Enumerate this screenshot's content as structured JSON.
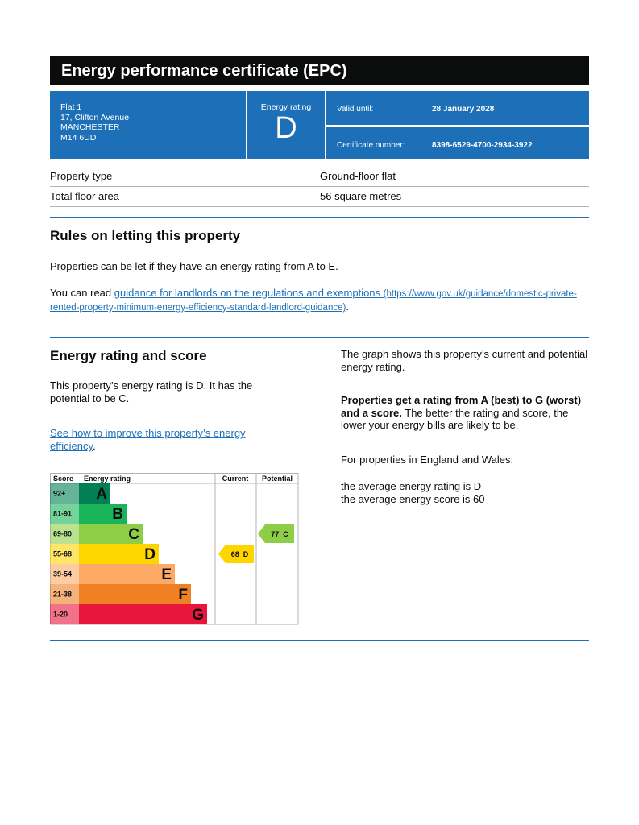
{
  "header": {
    "title": "Energy performance certificate (EPC)"
  },
  "summary": {
    "address": [
      "Flat 1",
      "17, Clifton Avenue",
      "MANCHESTER",
      "M14 6UD"
    ],
    "rating_label": "Energy rating",
    "rating": "D",
    "valid_until_label": "Valid until:",
    "valid_until": "28 January 2028",
    "certificate_label": "Certificate number:",
    "certificate": "8398-6529-4700-2934-3922"
  },
  "properties": [
    [
      "Property type",
      "Ground-floor flat"
    ],
    [
      "Total floor area",
      "56 square metres"
    ]
  ],
  "letting": {
    "title": "Rules on letting this property",
    "text": "Properties can be let if they have an energy rating from A to E.",
    "read_prefix": "You can read ",
    "link_text": "guidance for landlords on the regulations and exemptions",
    "link_url": "(https://www.gov.uk/guidance/domestic-private-rented-property-minimum-energy-efficiency-standard-landlord-guidance)",
    "read_suffix": "."
  },
  "energy": {
    "title": "Energy rating and score",
    "text": "This property’s energy rating is D. It has the potential to be C.",
    "link_text": "See how to improve this property’s energy efficiency",
    "link_suffix": ".",
    "graph_text": "The graph shows this property’s current and potential energy rating.",
    "bold_text": "Properties get a rating from A (best) to G (worst) and a score.",
    "rest_text": " The better the rating and score, the lower your energy bills are likely to be.",
    "region_text": "For properties in England and Wales:",
    "average_rating": "the average energy rating is D",
    "average_score": "the average energy score is 60"
  },
  "rating_chart": {
    "headers": [
      "Score",
      "Energy rating",
      "Current",
      "Potential"
    ],
    "bands": [
      {
        "score": "92+",
        "letter": "A",
        "color": "#008054"
      },
      {
        "score": "81-91",
        "letter": "B",
        "color": "#19b459"
      },
      {
        "score": "69-80",
        "letter": "C",
        "color": "#8dce46"
      },
      {
        "score": "55-68",
        "letter": "D",
        "color": "#ffd500"
      },
      {
        "score": "39-54",
        "letter": "E",
        "color": "#fcaa65"
      },
      {
        "score": "21-38",
        "letter": "F",
        "color": "#ef8023"
      },
      {
        "score": "1-20",
        "letter": "G",
        "color": "#e9153b"
      }
    ],
    "current": {
      "score": 68,
      "letter": "D"
    },
    "potential": {
      "score": 77,
      "letter": "C"
    }
  }
}
